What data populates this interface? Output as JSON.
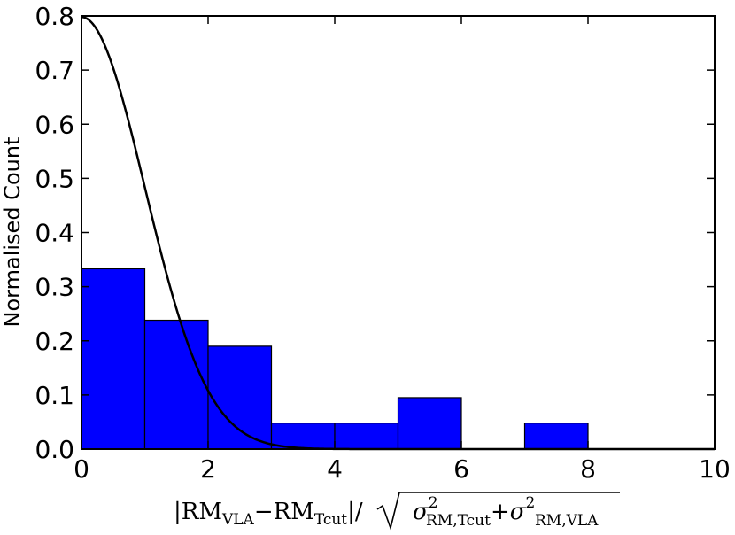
{
  "chart_data": {
    "type": "bar",
    "title": "",
    "xlabel": {
      "abs_open": "|",
      "rm1": "RM",
      "rm1_sub": "VLA",
      "minus": "−",
      "rm2": "RM",
      "rm2_sub": "Tcut",
      "abs_close_slash": "|/",
      "sigma1": "σ",
      "sigma1_sup": "2",
      "sigma1_sub": "RM,Tcut",
      "plus": "+",
      "sigma2": "σ",
      "sigma2_sup": "2",
      "sigma2_sub": "RM,VLA"
    },
    "ylabel": "Normalised Count",
    "xlim": [
      0,
      10
    ],
    "ylim": [
      0,
      0.8
    ],
    "xticks": [
      0,
      2,
      4,
      6,
      8,
      10
    ],
    "yticks": [
      "0.0",
      "0.1",
      "0.2",
      "0.3",
      "0.4",
      "0.5",
      "0.6",
      "0.7",
      "0.8"
    ],
    "grid": false,
    "bar_color": "#0000ff",
    "bins": [
      {
        "x0": 0,
        "x1": 1,
        "value": 0.333
      },
      {
        "x0": 1,
        "x1": 2,
        "value": 0.238
      },
      {
        "x0": 2,
        "x1": 3,
        "value": 0.19
      },
      {
        "x0": 3,
        "x1": 4,
        "value": 0.048
      },
      {
        "x0": 4,
        "x1": 5,
        "value": 0.048
      },
      {
        "x0": 5,
        "x1": 6,
        "value": 0.095
      },
      {
        "x0": 6,
        "x1": 7,
        "value": 0.0
      },
      {
        "x0": 7,
        "x1": 8,
        "value": 0.048
      },
      {
        "x0": 8,
        "x1": 9,
        "value": 0.0
      },
      {
        "x0": 9,
        "x1": 10,
        "value": 0.0
      }
    ],
    "curve": {
      "type": "half-normal",
      "sigma": 1,
      "peak": 0.798,
      "color": "#000000"
    }
  }
}
